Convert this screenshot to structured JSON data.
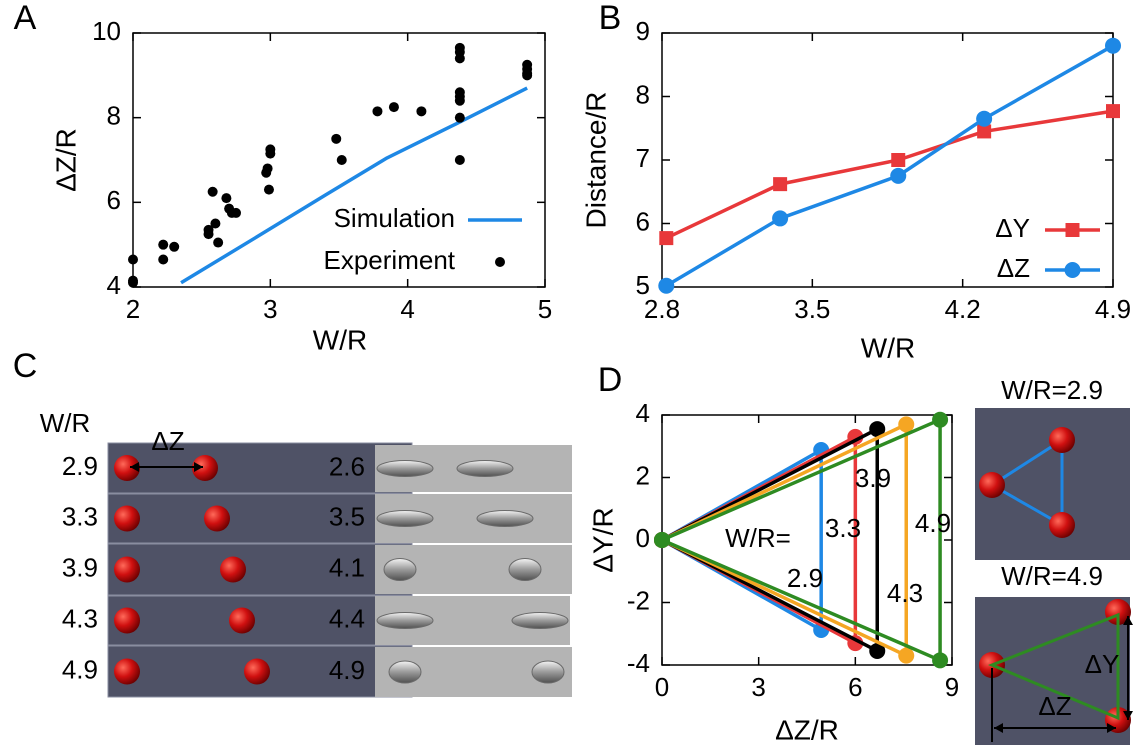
{
  "chart_data": [
    {
      "type": "scatter",
      "panel": "A",
      "xlabel": "W/R",
      "ylabel": "ΔZ/R",
      "xlim": [
        2,
        5
      ],
      "ylim": [
        4,
        10
      ],
      "xticks": [
        2,
        3,
        4,
        5
      ],
      "yticks": [
        4,
        6,
        8,
        10
      ],
      "legend": "center right",
      "series": [
        {
          "name": "Simulation",
          "color": "#1e88e5",
          "mode": "line",
          "x": [
            2.35,
            2.9,
            3.4,
            3.85,
            4.35,
            4.87
          ],
          "values": [
            4.1,
            5.18,
            6.17,
            7.05,
            7.85,
            8.7
          ]
        },
        {
          "name": "Experiment",
          "color": "#000000",
          "mode": "points",
          "x": [
            2.0,
            2.0,
            2.0,
            2.22,
            2.22,
            2.3,
            2.55,
            2.55,
            2.58,
            2.6,
            2.62,
            2.68,
            2.7,
            2.72,
            2.75,
            2.97,
            2.98,
            3.0,
            3.0,
            2.99,
            3.48,
            3.52,
            3.78,
            3.9,
            4.1,
            4.38,
            4.38,
            4.38,
            4.38,
            4.38,
            4.38,
            4.38,
            4.38,
            4.87,
            4.87,
            4.87,
            4.87
          ],
          "values": [
            4.65,
            4.15,
            4.1,
            5.0,
            4.65,
            4.95,
            5.35,
            5.25,
            6.25,
            5.5,
            5.05,
            6.1,
            5.85,
            5.75,
            5.75,
            6.7,
            6.8,
            7.25,
            7.15,
            6.3,
            7.5,
            7.0,
            8.15,
            8.25,
            8.15,
            9.65,
            9.55,
            9.4,
            8.6,
            8.5,
            8.4,
            8.0,
            7.0,
            9.25,
            9.15,
            9.05,
            9.0
          ]
        }
      ]
    },
    {
      "type": "line",
      "panel": "B",
      "xlabel": "W/R",
      "ylabel": "Distance/R",
      "xlim": [
        2.8,
        4.9
      ],
      "ylim": [
        5,
        9
      ],
      "xticks": [
        2.8,
        3.5,
        4.2,
        4.9
      ],
      "yticks": [
        5,
        6,
        7,
        8,
        9
      ],
      "legend": "lower right",
      "series": [
        {
          "name": "ΔY",
          "color": "#e8383a",
          "mode": "line-markers",
          "marker": "square",
          "x": [
            2.82,
            3.35,
            3.9,
            4.3,
            4.9
          ],
          "values": [
            5.77,
            6.62,
            7.0,
            7.45,
            7.77
          ]
        },
        {
          "name": "ΔZ",
          "color": "#1e88e5",
          "mode": "line-markers",
          "marker": "circle",
          "x": [
            2.82,
            3.35,
            3.9,
            4.3,
            4.9
          ],
          "values": [
            5.02,
            6.08,
            6.75,
            7.65,
            8.8
          ]
        }
      ]
    },
    {
      "type": "line",
      "panel": "D",
      "xlabel": "ΔZ/R",
      "ylabel": "ΔY/R",
      "xlim": [
        0,
        9
      ],
      "ylim": [
        -4,
        4
      ],
      "xticks": [
        0,
        3,
        6,
        9
      ],
      "yticks": [
        -4,
        -2,
        0,
        2,
        4
      ],
      "legend": null,
      "annotation": "W/R=",
      "series": [
        {
          "name": "2.9",
          "color": "#1e88e5",
          "mode": "line-markers",
          "marker": "circle",
          "x": [
            0,
            4.94,
            4.94,
            0
          ],
          "values": [
            0,
            2.88,
            -2.88,
            0
          ]
        },
        {
          "name": "3.3",
          "color": "#e8383a",
          "mode": "line-markers",
          "marker": "circle",
          "x": [
            0,
            6.0,
            6.0,
            0
          ],
          "values": [
            0,
            3.3,
            -3.3,
            0
          ]
        },
        {
          "name": "3.9",
          "color": "#000000",
          "mode": "line-markers",
          "marker": "circle",
          "x": [
            0,
            6.68,
            6.68,
            0
          ],
          "values": [
            0,
            3.55,
            -3.55,
            0
          ]
        },
        {
          "name": "4.3",
          "color": "#f5a623",
          "mode": "line-markers",
          "marker": "circle",
          "x": [
            0,
            7.58,
            7.58,
            0
          ],
          "values": [
            0,
            3.7,
            -3.7,
            0
          ]
        },
        {
          "name": "4.9",
          "color": "#2e8b22",
          "mode": "line-markers",
          "marker": "circle",
          "x": [
            0,
            8.63,
            8.63,
            0
          ],
          "values": [
            0,
            3.85,
            -3.85,
            0
          ]
        }
      ]
    }
  ],
  "panel_c": {
    "panel": "C",
    "header": "W/R",
    "arrow_label": "ΔZ",
    "simulation_labels": [
      "2.9",
      "3.3",
      "3.9",
      "4.3",
      "4.9"
    ],
    "experiment_labels": [
      "2.6",
      "3.5",
      "4.1",
      "4.4",
      "4.9"
    ]
  },
  "panel_d_insets": [
    {
      "title": "W/R=2.9"
    },
    {
      "title": "W/R=4.9",
      "dy_label": "ΔY",
      "dz_label": "ΔZ"
    }
  ]
}
